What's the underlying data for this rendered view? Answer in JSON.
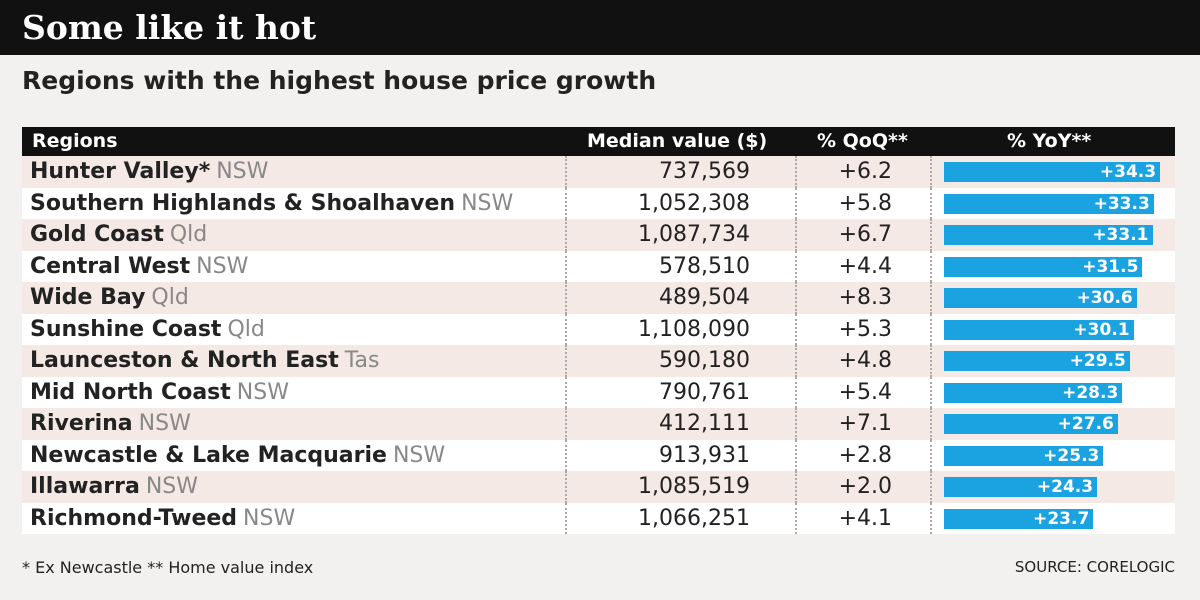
{
  "header": {
    "title": "Some like it hot",
    "subtitle": "Regions with the highest house price growth"
  },
  "table": {
    "columns": [
      "Regions",
      "Median value ($)",
      "% QoQ**",
      "% YoY**"
    ],
    "rows": [
      {
        "region": "Hunter Valley*",
        "state": "NSW",
        "median": "737,569",
        "qoq": "+6.2",
        "yoy": {
          "value": 34.3,
          "label": "+34.3"
        }
      },
      {
        "region": "Southern Highlands & Shoalhaven",
        "state": "NSW",
        "median": "1,052,308",
        "qoq": "+5.8",
        "yoy": {
          "value": 33.3,
          "label": "+33.3"
        }
      },
      {
        "region": "Gold Coast",
        "state": "Qld",
        "median": "1,087,734",
        "qoq": "+6.7",
        "yoy": {
          "value": 33.1,
          "label": "+33.1"
        }
      },
      {
        "region": "Central West",
        "state": "NSW",
        "median": "578,510",
        "qoq": "+4.4",
        "yoy": {
          "value": 31.5,
          "label": "+31.5"
        }
      },
      {
        "region": "Wide Bay",
        "state": "Qld",
        "median": "489,504",
        "qoq": "+8.3",
        "yoy": {
          "value": 30.6,
          "label": "+30.6"
        }
      },
      {
        "region": "Sunshine Coast",
        "state": "Qld",
        "median": "1,108,090",
        "qoq": "+5.3",
        "yoy": {
          "value": 30.1,
          "label": "+30.1"
        }
      },
      {
        "region": "Launceston & North East",
        "state": "Tas",
        "median": "590,180",
        "qoq": "+4.8",
        "yoy": {
          "value": 29.5,
          "label": "+29.5"
        }
      },
      {
        "region": "Mid North Coast",
        "state": "NSW",
        "median": "790,761",
        "qoq": "+5.4",
        "yoy": {
          "value": 28.3,
          "label": "+28.3"
        }
      },
      {
        "region": "Riverina",
        "state": "NSW",
        "median": "412,111",
        "qoq": "+7.1",
        "yoy": {
          "value": 27.6,
          "label": "+27.6"
        }
      },
      {
        "region": "Newcastle & Lake Macquarie",
        "state": "NSW",
        "median": "913,931",
        "qoq": "+2.8",
        "yoy": {
          "value": 25.3,
          "label": "+25.3"
        }
      },
      {
        "region": "Illawarra",
        "state": "NSW",
        "median": "1,085,519",
        "qoq": "+2.0",
        "yoy": {
          "value": 24.3,
          "label": "+24.3"
        }
      },
      {
        "region": "Richmond-Tweed",
        "state": "NSW",
        "median": "1,066,251",
        "qoq": "+4.1",
        "yoy": {
          "value": 23.7,
          "label": "+23.7"
        }
      }
    ]
  },
  "footer": {
    "note": "* Ex Newcastle ** Home value index",
    "source": "SOURCE: CORELOGIC"
  }
}
